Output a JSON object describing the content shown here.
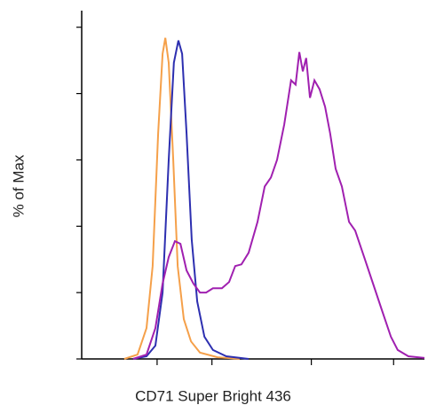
{
  "chart_data": {
    "type": "line",
    "xlabel": "CD71 Super Bright 436",
    "ylabel": "% of Max",
    "xlim": [
      0,
      100
    ],
    "ylim": [
      0,
      105
    ],
    "xticks": [
      22,
      38,
      67,
      91
    ],
    "yticks": [
      0,
      20,
      40,
      60,
      80,
      100
    ],
    "series": [
      {
        "color": "#f5a04a",
        "x": [
          12.4,
          16.3,
          18.9,
          20.7,
          22.3,
          23.6,
          24.4,
          25.4,
          26.7,
          28.0,
          29.8,
          31.9,
          34.5,
          39.6,
          46.1
        ],
        "values": [
          0,
          1.3,
          9.3,
          28.0,
          68.0,
          92.0,
          96.8,
          89.3,
          60.0,
          28.0,
          12.0,
          5.3,
          1.9,
          0.5,
          0
        ]
      },
      {
        "color": "#2d2fb0",
        "x": [
          15.0,
          18.9,
          21.5,
          23.6,
          25.4,
          26.9,
          28.2,
          29.3,
          30.6,
          32.1,
          33.7,
          35.8,
          38.3,
          42.2,
          48.7
        ],
        "values": [
          0,
          0.8,
          4.0,
          20.0,
          60.0,
          89.3,
          96.0,
          92.0,
          68.0,
          36.0,
          17.3,
          6.7,
          2.7,
          0.8,
          0
        ]
      },
      {
        "color": "#a020b0",
        "x": [
          15.0,
          18.9,
          21.5,
          23.6,
          25.4,
          27.2,
          28.8,
          30.6,
          32.6,
          34.5,
          36.3,
          38.3,
          40.9,
          43.0,
          44.8,
          46.6,
          48.7,
          51.3,
          53.4,
          55.2,
          57.0,
          59.1,
          61.1,
          62.4,
          63.5,
          64.5,
          65.5,
          66.6,
          67.9,
          69.4,
          71.0,
          72.5,
          74.1,
          75.9,
          78.0,
          79.8,
          82.4,
          85.0,
          87.6,
          90.2,
          92.2,
          95.3,
          100
        ],
        "values": [
          0,
          1.3,
          9.3,
          22.7,
          30.7,
          35.5,
          34.7,
          26.7,
          22.7,
          20.0,
          20.0,
          21.3,
          21.3,
          23.2,
          28.0,
          28.5,
          32.0,
          41.3,
          52.0,
          54.7,
          60.0,
          70.7,
          84.0,
          82.7,
          92.5,
          86.7,
          90.7,
          78.7,
          84.0,
          81.3,
          76.0,
          68.0,
          57.3,
          52.0,
          41.3,
          38.7,
          30.7,
          22.7,
          14.7,
          6.7,
          2.7,
          0.8,
          0.3
        ]
      }
    ]
  }
}
